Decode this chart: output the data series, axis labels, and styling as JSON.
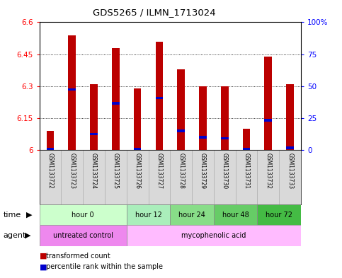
{
  "title": "GDS5265 / ILMN_1713024",
  "samples": [
    "GSM1133722",
    "GSM1133723",
    "GSM1133724",
    "GSM1133725",
    "GSM1133726",
    "GSM1133727",
    "GSM1133728",
    "GSM1133729",
    "GSM1133730",
    "GSM1133731",
    "GSM1133732",
    "GSM1133733"
  ],
  "transformed_counts": [
    6.09,
    6.54,
    6.31,
    6.48,
    6.29,
    6.51,
    6.38,
    6.3,
    6.3,
    6.1,
    6.44,
    6.31
  ],
  "percentile_values": [
    6.005,
    6.285,
    6.075,
    6.22,
    6.005,
    6.245,
    6.09,
    6.06,
    6.055,
    6.005,
    6.14,
    6.01
  ],
  "ylim": [
    6.0,
    6.6
  ],
  "yticks": [
    6.0,
    6.15,
    6.3,
    6.45,
    6.6
  ],
  "ytick_labels": [
    "6",
    "6.15",
    "6.3",
    "6.45",
    "6.6"
  ],
  "right_yticks": [
    0,
    25,
    50,
    75,
    100
  ],
  "right_ytick_labels": [
    "0",
    "25",
    "50",
    "75",
    "100%"
  ],
  "bar_color": "#bb0000",
  "blue_color": "#0000cc",
  "time_groups": [
    {
      "label": "hour 0",
      "start": 0,
      "end": 4,
      "color": "#ccffcc"
    },
    {
      "label": "hour 12",
      "start": 4,
      "end": 6,
      "color": "#aaeebb"
    },
    {
      "label": "hour 24",
      "start": 6,
      "end": 8,
      "color": "#88dd88"
    },
    {
      "label": "hour 48",
      "start": 8,
      "end": 10,
      "color": "#66cc66"
    },
    {
      "label": "hour 72",
      "start": 10,
      "end": 12,
      "color": "#44bb44"
    }
  ],
  "agent_groups": [
    {
      "label": "untreated control",
      "start": 0,
      "end": 4,
      "color": "#ee88ee"
    },
    {
      "label": "mycophenolic acid",
      "start": 4,
      "end": 12,
      "color": "#ffbbff"
    }
  ],
  "legend_red": "transformed count",
  "legend_blue": "percentile rank within the sample",
  "bar_width": 0.35
}
